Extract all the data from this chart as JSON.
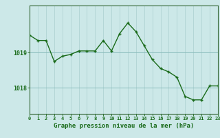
{
  "hours": [
    0,
    1,
    2,
    3,
    4,
    5,
    6,
    7,
    8,
    9,
    10,
    11,
    12,
    13,
    14,
    15,
    16,
    17,
    18,
    19,
    20,
    21,
    22,
    23
  ],
  "pressure": [
    1019.5,
    1019.35,
    1019.35,
    1018.75,
    1018.9,
    1018.95,
    1019.05,
    1019.05,
    1019.05,
    1019.35,
    1019.05,
    1019.55,
    1019.85,
    1019.6,
    1019.2,
    1018.8,
    1018.55,
    1018.45,
    1018.3,
    1017.75,
    1017.65,
    1017.65,
    1018.05,
    1018.05
  ],
  "line_color": "#1a6b1a",
  "marker_color": "#1a6b1a",
  "bg_color": "#cce8e8",
  "grid_color_v": "#aacfcf",
  "grid_color_h": "#88bbbb",
  "xlabel": "Graphe pression niveau de la mer (hPa)",
  "xlabel_color": "#1a6b1a",
  "ytick_labels": [
    "1018",
    "1019"
  ],
  "ytick_values": [
    1018.0,
    1019.0
  ],
  "ylim_min": 1017.25,
  "ylim_max": 1020.35,
  "xlim_min": 0,
  "xlim_max": 23,
  "axis_color": "#336633",
  "tick_color": "#1a6b1a"
}
